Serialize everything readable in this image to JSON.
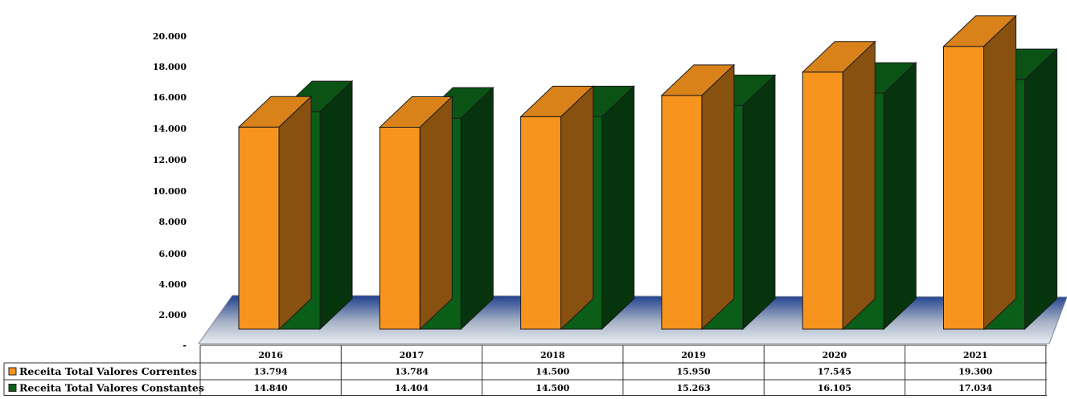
{
  "chart_data": {
    "type": "bar",
    "categories": [
      "2016",
      "2017",
      "2018",
      "2019",
      "2020",
      "2021"
    ],
    "series": [
      {
        "name": "Receita Total Valores Correntes",
        "values": [
          13794,
          13784,
          14500,
          15950,
          17545,
          19300
        ],
        "value_labels": [
          "13.794",
          "13.784",
          "14.500",
          "15.950",
          "17.545",
          "19.300"
        ],
        "color": "#F7941D"
      },
      {
        "name": "Receita Total Valores Constantes",
        "values": [
          14840,
          14404,
          14500,
          15263,
          16105,
          17034
        ],
        "value_labels": [
          "14.840",
          "14.404",
          "14.500",
          "15.263",
          "16.105",
          "17.034"
        ],
        "color": "#0B5E18"
      }
    ],
    "y_ticks": [
      0,
      2000,
      4000,
      6000,
      8000,
      10000,
      12000,
      14000,
      16000,
      18000,
      20000
    ],
    "y_tick_labels": [
      "-",
      "2.000",
      "4.000",
      "6.000",
      "8.000",
      "10.000",
      "12.000",
      "14.000",
      "16.000",
      "18.000",
      "20.000"
    ],
    "ylim": [
      0,
      20000
    ],
    "title": "",
    "xlabel": "",
    "ylabel": "",
    "grid": false,
    "legend": "data-table-left",
    "floor_color": "#1F3F8F"
  }
}
